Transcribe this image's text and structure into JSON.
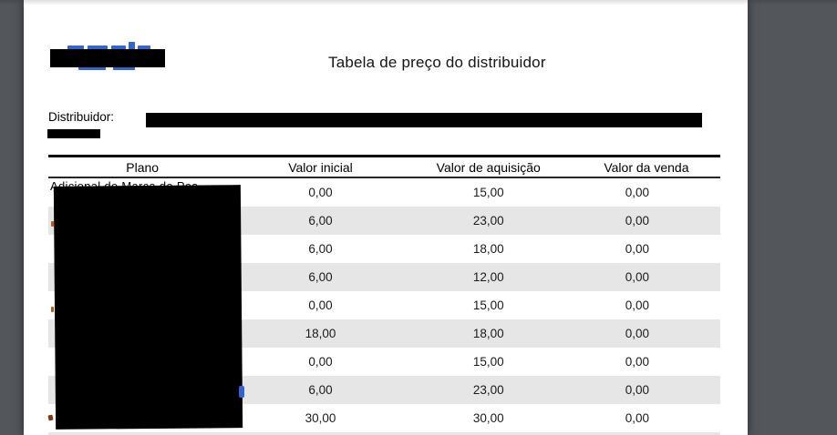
{
  "page": {
    "title": "Tabela de preço do distribuidor"
  },
  "distributor": {
    "label": "Distribuidor:"
  },
  "table": {
    "columns": [
      "Plano",
      "Valor inicial",
      "Valor de aquisição",
      "Valor da venda"
    ],
    "rows": [
      {
        "plano_fragment": "Adicional de Marca do Pos",
        "valor_inicial": "0,00",
        "valor_de_aquisicao": "15,00",
        "valor_da_venda": "0,00"
      },
      {
        "valor_inicial": "6,00",
        "valor_de_aquisicao": "23,00",
        "valor_da_venda": "0,00"
      },
      {
        "valor_inicial": "6,00",
        "valor_de_aquisicao": "18,00",
        "valor_da_venda": "0,00"
      },
      {
        "valor_inicial": "6,00",
        "valor_de_aquisicao": "12,00",
        "valor_da_venda": "0,00"
      },
      {
        "valor_inicial": "0,00",
        "valor_de_aquisicao": "15,00",
        "valor_da_venda": "0,00"
      },
      {
        "valor_inicial": "18,00",
        "valor_de_aquisicao": "18,00",
        "valor_da_venda": "0,00"
      },
      {
        "valor_inicial": "0,00",
        "valor_de_aquisicao": "15,00",
        "valor_da_venda": "0,00"
      },
      {
        "valor_inicial": "6,00",
        "valor_de_aquisicao": "23,00",
        "valor_da_venda": "0,00"
      },
      {
        "valor_inicial": "30,00",
        "valor_de_aquisicao": "30,00",
        "valor_da_venda": "0,00"
      }
    ]
  },
  "redactions": {
    "logo": true,
    "distributor_value": true,
    "distributor_secondary_line": true,
    "plano_column_values": true
  },
  "colors": {
    "viewer_background": "#53565A",
    "page_background": "#FFFFFF",
    "row_stripe": "#E6E6E6",
    "redaction": "#000000",
    "logo_blue": "#3465CC"
  }
}
